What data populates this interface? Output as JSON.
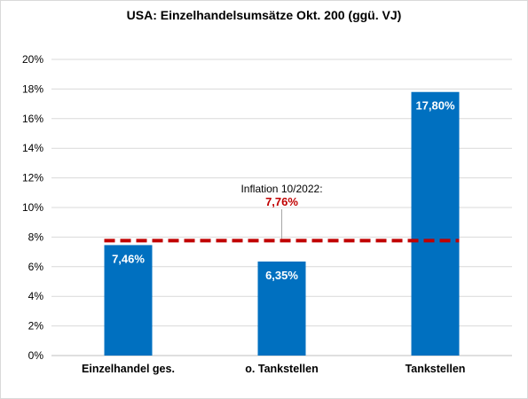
{
  "chart_data": {
    "type": "bar",
    "title": "USA: Einzelhandelsumsätze  Okt. 200 (ggü. VJ)",
    "categories": [
      "Einzelhandel ges.",
      "o. Tankstellen",
      "Tankstellen"
    ],
    "values": [
      7.46,
      6.35,
      17.8
    ],
    "data_labels": [
      "7,46%",
      "6,35%",
      "17,80%"
    ],
    "ylim": [
      0,
      20
    ],
    "yticks": [
      0,
      2,
      4,
      6,
      8,
      10,
      12,
      14,
      16,
      18,
      20
    ],
    "ytick_labels": [
      "0%",
      "2%",
      "4%",
      "6%",
      "8%",
      "10%",
      "12%",
      "14%",
      "16%",
      "18%",
      "20%"
    ],
    "grid": true,
    "bar_color": "#0070C0",
    "reference_line": {
      "value": 7.76,
      "label": "Inflation 10/2022:",
      "value_label": "7,76%",
      "color": "#C00000",
      "style": "dashed"
    }
  }
}
